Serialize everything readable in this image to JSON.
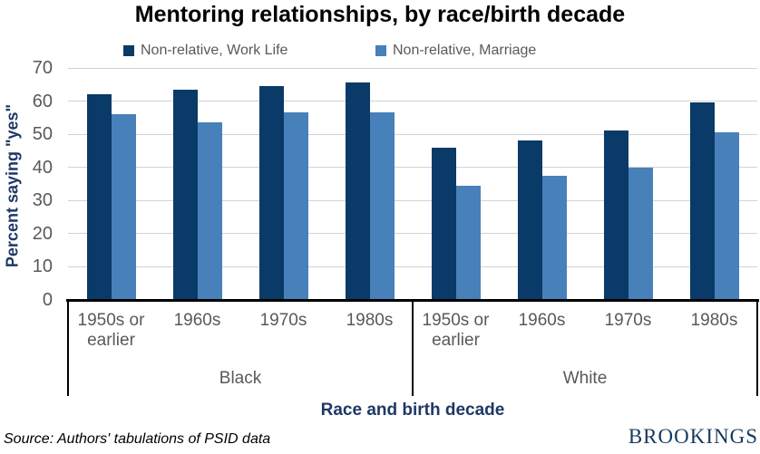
{
  "chart_data": {
    "type": "bar",
    "title": "Mentoring relationships, by race/birth decade",
    "xlabel": "Race and birth decade",
    "ylabel": "Percent saying \"yes\"",
    "ylim": [
      0,
      70
    ],
    "yticks": [
      0,
      10,
      20,
      30,
      40,
      50,
      60,
      70
    ],
    "grid": true,
    "legend_position": "top",
    "categories": [
      "1950s or earlier",
      "1960s",
      "1970s",
      "1980s",
      "1950s or earlier",
      "1960s",
      "1970s",
      "1980s"
    ],
    "group_labels": [
      "Black",
      "White"
    ],
    "series": [
      {
        "name": "Non-relative, Work Life",
        "color": "#0A3A68",
        "values": [
          62,
          63.5,
          64.5,
          65.5,
          46,
          48,
          51,
          59.5
        ]
      },
      {
        "name": "Non-relative, Marriage",
        "color": "#4880BA",
        "values": [
          56,
          53.5,
          56.5,
          56.5,
          34.5,
          37.5,
          40,
          50.5
        ]
      }
    ]
  },
  "colors": {
    "series_dark": "#0A3A68",
    "series_light": "#4880BA",
    "axis_text_gray": "#595959",
    "navy_text": "#1F3864",
    "gridline": "#D2D2D2",
    "brand_navy": "#17395E"
  },
  "footer": {
    "source": "Source: Authors' tabulations of PSID data",
    "brand": "BROOKINGS"
  }
}
